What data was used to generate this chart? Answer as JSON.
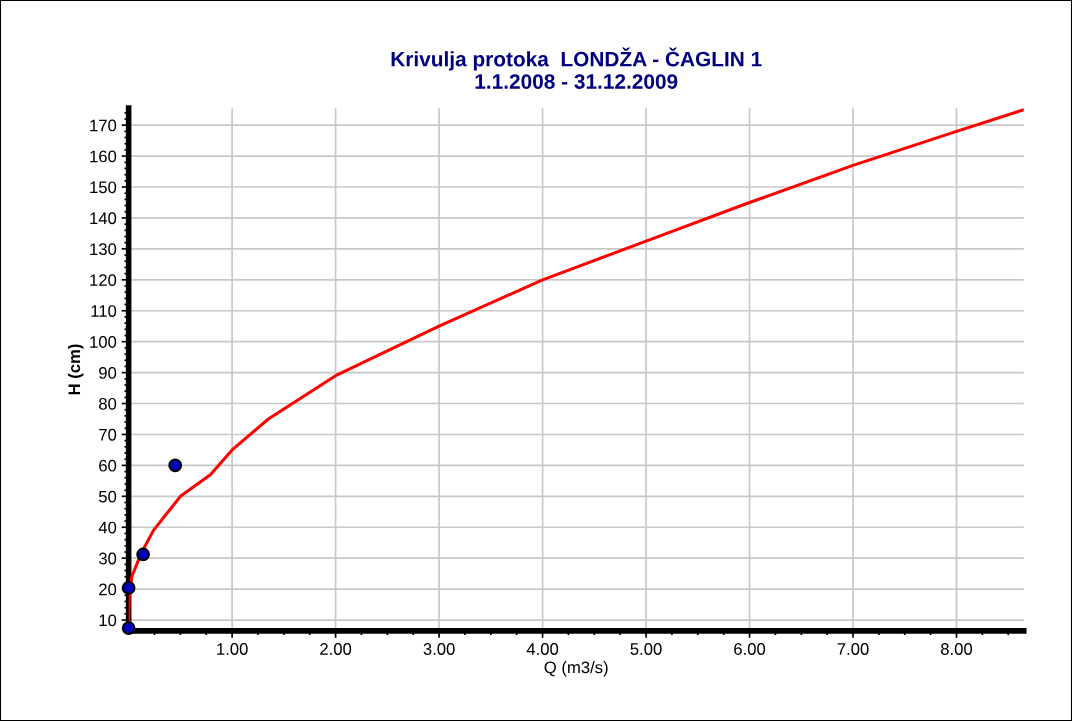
{
  "chart_data": {
    "type": "line",
    "title": "Krivulja protoka  LONDŽA - ČAGLIN 1\n1.1.2008 - 31.12.2009",
    "xlabel": "Q (m3/s)",
    "ylabel": "H (cm)",
    "series": [
      {
        "color": "#ff0000",
        "x": [
          0,
          0.005,
          0.03,
          0.12,
          0.24,
          0.5,
          0.79,
          1.0,
          1.35,
          2.0,
          3.0,
          4.0,
          5.0,
          6.0,
          7.0,
          8.0,
          8.65
        ],
        "values": [
          9,
          17,
          24,
          31.5,
          39,
          50,
          57,
          65,
          75,
          89,
          105,
          120,
          132.5,
          145,
          157,
          168,
          175
        ]
      },
      {
        "type": "scatter",
        "color": "#0000c0",
        "marker": "circle",
        "x": [
          0.0,
          0.0,
          0.14,
          0.45
        ],
        "values": [
          7.4,
          20.4,
          31.2,
          60
        ]
      }
    ],
    "xlim": [
      0,
      8.65
    ],
    "ylim": [
      6.5,
      175.5
    ],
    "xticks": [
      {
        "value": 1,
        "label": "1.00"
      },
      {
        "value": 2,
        "label": "2.00"
      },
      {
        "value": 3,
        "label": "3.00"
      },
      {
        "value": 4,
        "label": "4.00"
      },
      {
        "value": 5,
        "label": "5.00"
      },
      {
        "value": 6,
        "label": "6.00"
      },
      {
        "value": 7,
        "label": "7.00"
      },
      {
        "value": 8,
        "label": "8.00"
      }
    ],
    "yticks": [
      10,
      20,
      30,
      40,
      50,
      60,
      70,
      80,
      90,
      100,
      110,
      120,
      130,
      140,
      150,
      160,
      170
    ],
    "grid": true
  }
}
